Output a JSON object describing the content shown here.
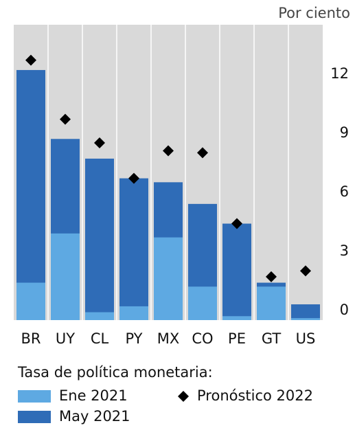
{
  "chart_data": {
    "type": "bar",
    "unit_label": "Por ciento",
    "legend_title": "Tasa de política monetaria:",
    "categories": [
      "BR",
      "UY",
      "CL",
      "PY",
      "MX",
      "CO",
      "PE",
      "GT",
      "US"
    ],
    "series": [
      {
        "name": "Ene 2021",
        "color": "#5ea9e2",
        "values": [
          1.9,
          4.4,
          0.4,
          0.7,
          4.2,
          1.7,
          0.2,
          1.7,
          0.1
        ]
      },
      {
        "name": "May 2021",
        "color": "#2f6cb7",
        "values": [
          12.7,
          9.2,
          8.2,
          7.2,
          7.0,
          5.9,
          4.9,
          1.9,
          0.8
        ]
      },
      {
        "name": "Pronóstico 2022",
        "color": "#000000",
        "marker": "diamond",
        "values": [
          13.2,
          10.2,
          9.0,
          7.2,
          8.6,
          8.5,
          4.9,
          2.2,
          2.5
        ]
      }
    ],
    "ylim": [
      0,
      15
    ],
    "yticks": [
      0,
      3,
      6,
      9,
      12
    ]
  }
}
